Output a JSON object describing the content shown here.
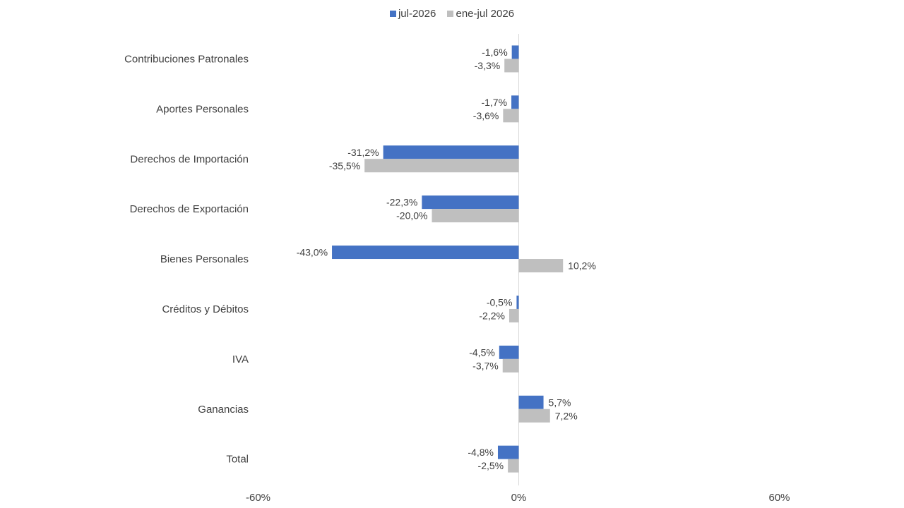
{
  "chart_data": {
    "type": "bar",
    "orientation": "horizontal",
    "categories": [
      "Contribuciones Patronales",
      "Aportes Personales",
      "Derechos de Importación",
      "Derechos de Exportación",
      "Bienes Personales",
      "Créditos y Débitos",
      "IVA",
      "Ganancias",
      "Total"
    ],
    "series": [
      {
        "name": "jul-2026",
        "color": "#4472C4",
        "values": [
          -1.6,
          -1.7,
          -31.2,
          -22.3,
          -43.0,
          -0.5,
          -4.5,
          5.7,
          -4.8
        ],
        "labels": [
          "-1,6%",
          "-1,7%",
          "-31,2%",
          "-22,3%",
          "-43,0%",
          "-0,5%",
          "-4,5%",
          "5,7%",
          "-4,8%"
        ]
      },
      {
        "name": "ene-jul 2026",
        "color": "#BFBFBF",
        "values": [
          -3.3,
          -3.6,
          -35.5,
          -20.0,
          10.2,
          -2.2,
          -3.7,
          7.2,
          -2.5
        ],
        "labels": [
          "-3,3%",
          "-3,6%",
          "-35,5%",
          "-20,0%",
          "10,2%",
          "-2,2%",
          "-3,7%",
          "7,2%",
          "-2,5%"
        ]
      }
    ],
    "xlim": [
      -60,
      60
    ],
    "xticks": [
      "-60%",
      "0%",
      "60%"
    ],
    "legend": "top-center",
    "grid": false
  }
}
